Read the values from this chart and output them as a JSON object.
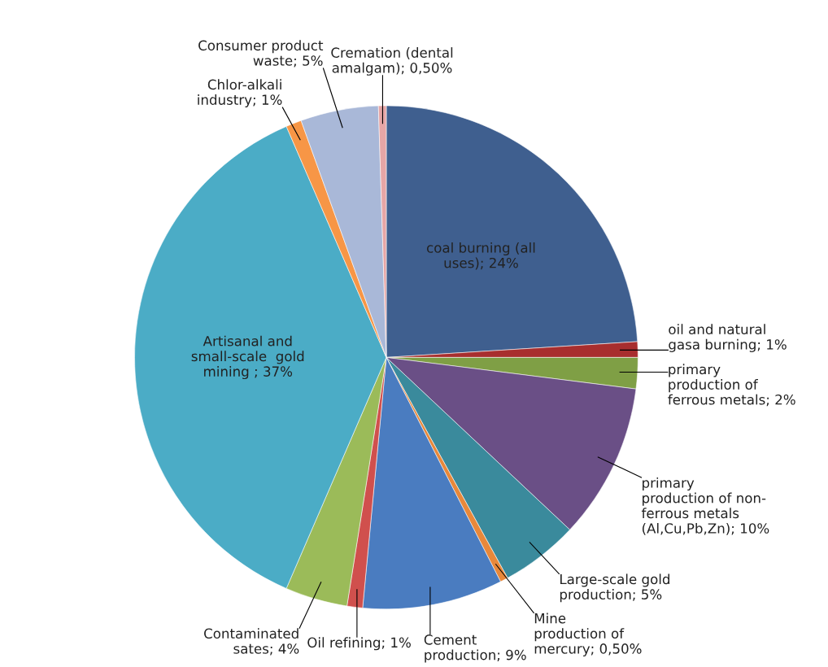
{
  "chart_data": {
    "type": "pie",
    "categories": [
      "coal burning (all\nuses)",
      "oil and natural\ngasa burning",
      "primary\nproduction of\nferrous metals",
      "primary\nproduction of non-\nferrous metals\n(Al,Cu,Pb,Zn)",
      "Large-scale gold\nproduction",
      "Mine\nproduction of\nmercury",
      "Cement\nproduction",
      "Oil refining",
      "Contaminated\nsates",
      "Artisanal and\nsmall-scale  gold\nmining ",
      "Chlor-alkali\nindustry",
      "Consumer product\nwaste",
      "Cremation (dental\namalgam)"
    ],
    "values": [
      24,
      1,
      2,
      10,
      5,
      0.5,
      9,
      1,
      4,
      37,
      1,
      5,
      0.5
    ],
    "value_labels": [
      "24%",
      "1%",
      "2%",
      "10%",
      "5%",
      "0,50%",
      "9%",
      "1%",
      "4%",
      "37%",
      "1%",
      "5%",
      "0,50%"
    ],
    "colors": [
      "#3f5f8f",
      "#a82e2e",
      "#7f9f45",
      "#6a4f86",
      "#3a8a9c",
      "#e8883a",
      "#4a7cc0",
      "#d0504d",
      "#9bbb59",
      "#4bacc6",
      "#f79646",
      "#a9b8d8",
      "#e6a6a6"
    ]
  }
}
